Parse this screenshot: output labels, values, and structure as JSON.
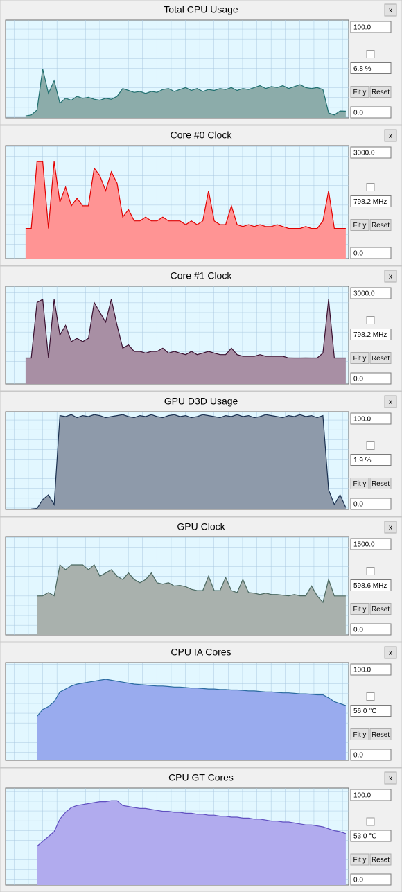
{
  "controls": {
    "fit": "Fit y",
    "reset": "Reset",
    "close": "x"
  },
  "chart_data": [
    {
      "type": "area",
      "title": "Total CPU Usage",
      "ylim": [
        0,
        100
      ],
      "yticks": [
        {
          "value": 0,
          "label": "0.0"
        },
        {
          "value": 100,
          "label": "100.0"
        }
      ],
      "current": "6.8 %",
      "color": "#8cacaa",
      "line_color": "#1f6f6f",
      "values": [
        null,
        null,
        null,
        2,
        3,
        8,
        50,
        25,
        38,
        15,
        20,
        18,
        22,
        20,
        21,
        19,
        18,
        20,
        19,
        22,
        30,
        28,
        26,
        27,
        25,
        27,
        26,
        29,
        30,
        27,
        29,
        31,
        28,
        30,
        27,
        29,
        28,
        30,
        29,
        31,
        28,
        30,
        29,
        31,
        33,
        30,
        32,
        31,
        33,
        30,
        32,
        34,
        31,
        30,
        31,
        29,
        5,
        3,
        7,
        6.8
      ]
    },
    {
      "type": "area",
      "title": "Core #0 Clock",
      "ylim": [
        0,
        3000
      ],
      "yticks": [
        {
          "value": 0,
          "label": "0.0"
        },
        {
          "value": 3000,
          "label": "3000.0"
        }
      ],
      "current": "798.2 MHz",
      "color": "#ff9494",
      "line_color": "#e00000",
      "values": [
        null,
        null,
        null,
        798,
        798,
        2574,
        2574,
        798,
        2574,
        1500,
        1900,
        1400,
        1600,
        1400,
        1400,
        2400,
        2200,
        1800,
        2300,
        2000,
        1100,
        1300,
        1000,
        1000,
        1100,
        1000,
        1000,
        1100,
        1000,
        1000,
        1000,
        900,
        1000,
        900,
        1000,
        1800,
        1000,
        900,
        900,
        1400,
        900,
        850,
        900,
        850,
        900,
        850,
        850,
        900,
        850,
        800,
        798,
        798,
        850,
        798,
        798,
        1000,
        1800,
        798,
        798,
        798
      ]
    },
    {
      "type": "area",
      "title": "Core #1 Clock",
      "ylim": [
        0,
        3000
      ],
      "yticks": [
        {
          "value": 0,
          "label": "0.0"
        },
        {
          "value": 3000,
          "label": "3000.0"
        }
      ],
      "current": "798.2 MHz",
      "color": "#a88fa4",
      "line_color": "#3a1030",
      "values": [
        null,
        null,
        null,
        798,
        798,
        2500,
        2600,
        798,
        2600,
        1500,
        1800,
        1300,
        1400,
        1300,
        1400,
        2500,
        2200,
        1900,
        2600,
        1800,
        1100,
        1200,
        1000,
        1000,
        950,
        1000,
        1000,
        1100,
        950,
        1000,
        950,
        900,
        1000,
        900,
        950,
        1000,
        950,
        900,
        900,
        1100,
        900,
        850,
        850,
        850,
        900,
        850,
        850,
        850,
        850,
        800,
        798,
        798,
        800,
        798,
        798,
        950,
        2600,
        798,
        798,
        798
      ]
    },
    {
      "type": "area",
      "title": "GPU D3D Usage",
      "ylim": [
        0,
        100
      ],
      "yticks": [
        {
          "value": 0,
          "label": "0.0"
        },
        {
          "value": 100,
          "label": "100.0"
        }
      ],
      "current": "1.9 %",
      "color": "#8e9aaa",
      "line_color": "#1a3050",
      "values": [
        null,
        null,
        null,
        null,
        0.5,
        1,
        10,
        15,
        5,
        96,
        95,
        97,
        94,
        96,
        95,
        97,
        96,
        94,
        95,
        96,
        97,
        95,
        94,
        96,
        95,
        97,
        95,
        94,
        96,
        97,
        95,
        96,
        94,
        95,
        97,
        96,
        95,
        94,
        96,
        95,
        97,
        95,
        96,
        94,
        95,
        97,
        96,
        95,
        94,
        96,
        95,
        97,
        95,
        96,
        94,
        96,
        20,
        5,
        15,
        1.9
      ]
    },
    {
      "type": "area",
      "title": "GPU Clock",
      "ylim": [
        0,
        1500
      ],
      "yticks": [
        {
          "value": 0,
          "label": "0.0"
        },
        {
          "value": 1500,
          "label": "1500.0"
        }
      ],
      "current": "598.6 MHz",
      "color": "#a9b1ad",
      "line_color": "#4a6860",
      "values": [
        null,
        null,
        null,
        null,
        null,
        598,
        600,
        650,
        600,
        1074,
        1000,
        1074,
        1074,
        1074,
        1000,
        1074,
        900,
        950,
        1000,
        900,
        850,
        950,
        850,
        800,
        850,
        950,
        800,
        780,
        800,
        750,
        760,
        740,
        700,
        680,
        680,
        900,
        680,
        680,
        880,
        680,
        650,
        850,
        650,
        640,
        620,
        640,
        620,
        620,
        610,
        600,
        620,
        600,
        600,
        750,
        600,
        500,
        850,
        598,
        598,
        598
      ]
    },
    {
      "type": "area",
      "title": "CPU IA Cores",
      "ylim": [
        0,
        100
      ],
      "yticks": [
        {
          "value": 0,
          "label": "0.0"
        },
        {
          "value": 100,
          "label": "100.0"
        }
      ],
      "current": "56.0 °C",
      "color": "#99abee",
      "line_color": "#2a6aa0",
      "values": [
        null,
        null,
        null,
        null,
        null,
        45,
        52,
        55,
        60,
        70,
        73,
        76,
        78,
        79,
        80,
        81,
        82,
        83,
        82,
        81,
        80,
        79,
        78,
        77.5,
        77,
        76.5,
        76,
        76,
        75.5,
        75,
        75,
        74.5,
        74,
        74,
        73.5,
        73,
        73,
        72.5,
        72.5,
        72,
        72,
        71.5,
        71,
        71,
        70.5,
        70,
        70,
        69.5,
        69,
        69,
        68.5,
        68,
        68,
        67.5,
        67,
        67,
        64,
        60,
        58,
        56
      ]
    },
    {
      "type": "area",
      "title": "CPU GT Cores",
      "ylim": [
        0,
        100
      ],
      "yticks": [
        {
          "value": 0,
          "label": "0.0"
        },
        {
          "value": 100,
          "label": "100.0"
        }
      ],
      "current": "53.0 °C",
      "color": "#b1abee",
      "line_color": "#6050c0",
      "values": [
        null,
        null,
        null,
        null,
        null,
        40,
        45,
        50,
        55,
        68,
        75,
        80,
        82,
        83,
        84,
        85,
        86,
        86,
        87,
        87,
        82,
        81,
        80,
        79,
        79,
        78,
        77,
        76,
        76,
        75,
        75,
        74,
        74,
        73,
        73,
        72,
        72,
        71,
        71,
        70,
        70,
        69,
        69,
        68,
        68,
        67,
        66,
        66,
        65,
        65,
        64,
        63,
        62,
        62,
        61,
        60,
        58,
        56,
        55,
        53
      ]
    }
  ]
}
